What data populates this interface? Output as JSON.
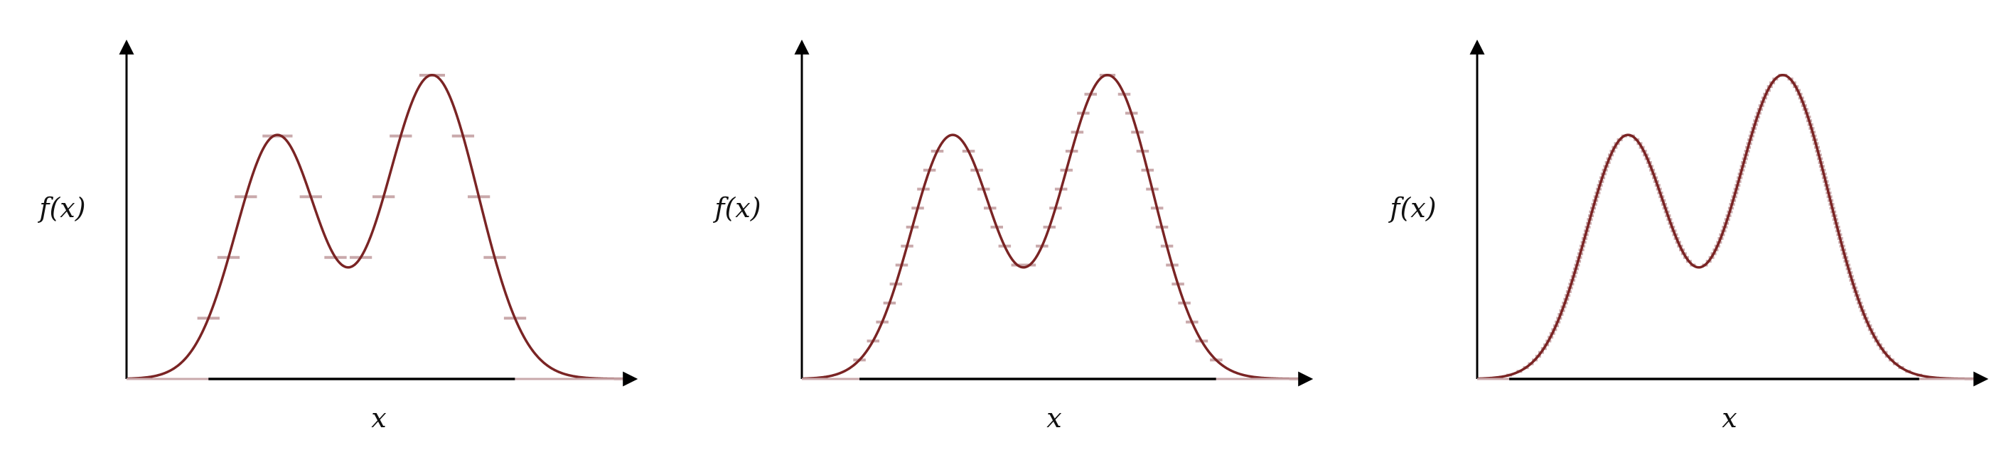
{
  "colors": {
    "axis": "#000000",
    "curve": "#7a2424",
    "steps": "#c9a9ab",
    "background": "#ffffff"
  },
  "function": {
    "description_components": [
      {
        "mu": 0.3,
        "sigma": 0.082,
        "amp": 0.8
      },
      {
        "mu": 0.61,
        "sigma": 0.092,
        "amp": 1.0
      }
    ]
  },
  "panels": [
    {
      "ylabel": "f(x)",
      "xlabel": "x",
      "levels": 5,
      "axis_x_max": 1.0
    },
    {
      "ylabel": "f(x)",
      "xlabel": "x",
      "levels": 16,
      "axis_x_max": 1.0
    },
    {
      "ylabel": "f(x)",
      "xlabel": "x",
      "levels": 80,
      "axis_x_max": 1.0
    }
  ]
}
